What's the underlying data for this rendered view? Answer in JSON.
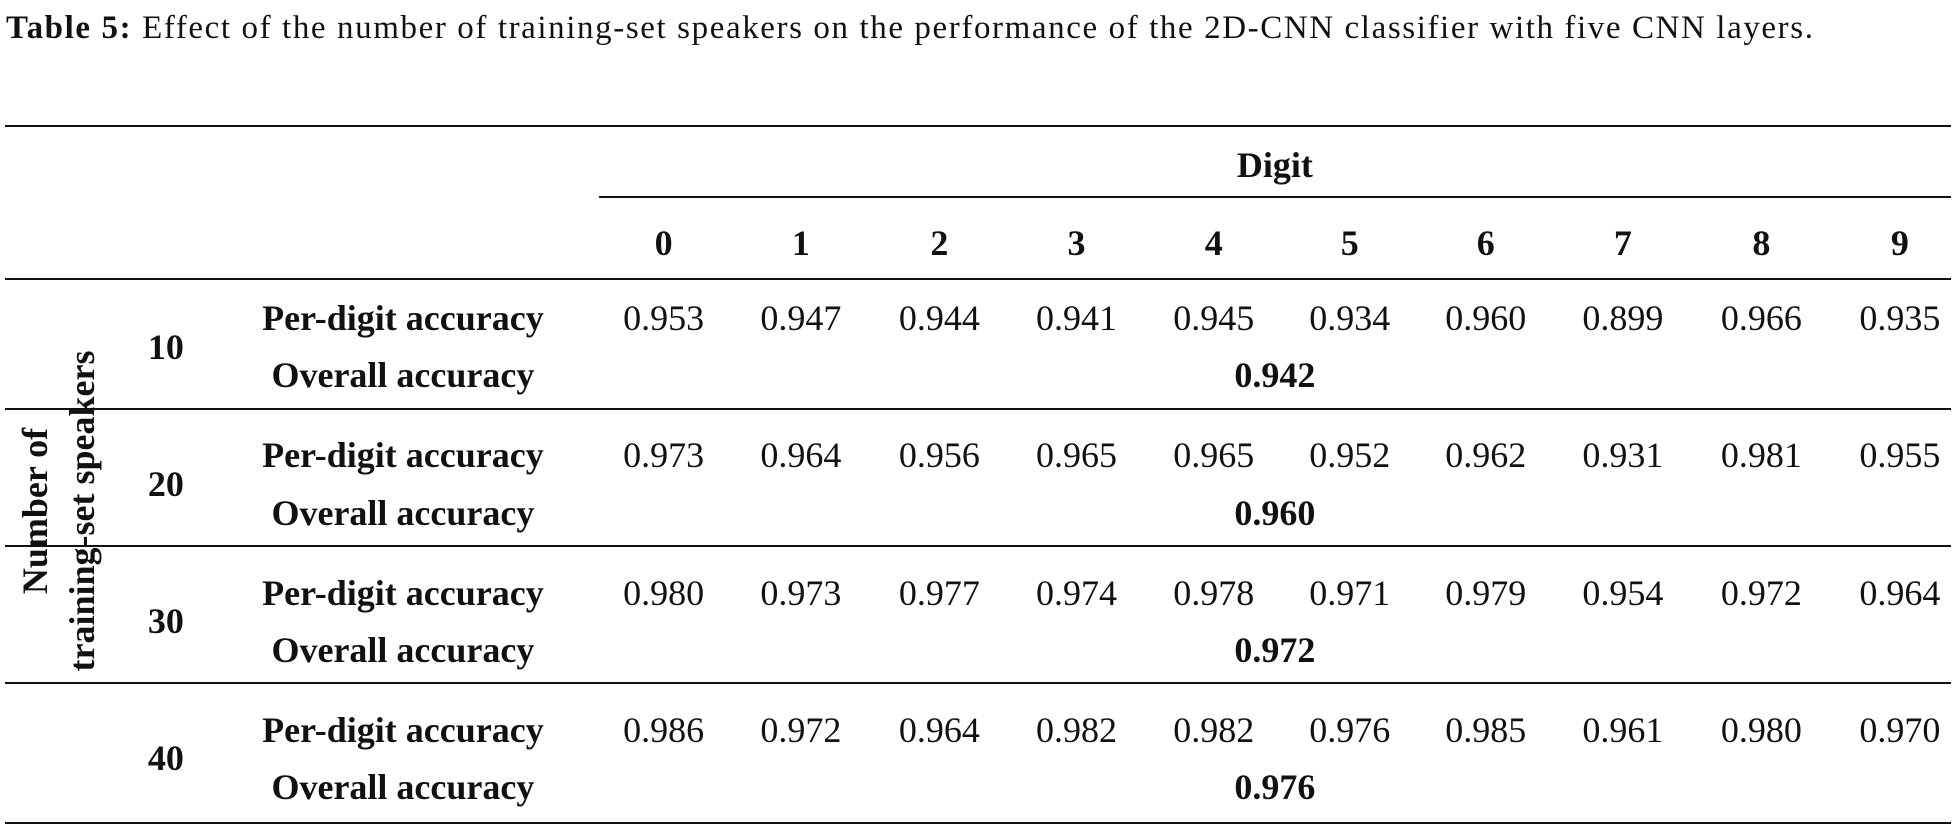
{
  "caption": {
    "label": "Table 5:",
    "text": "Effect of the number of training-set speakers on the performance of the 2D-CNN classifier with five CNN layers."
  },
  "table": {
    "column_group": "Digit",
    "columns": [
      "0",
      "1",
      "2",
      "3",
      "4",
      "5",
      "6",
      "7",
      "8",
      "9"
    ],
    "row_group": [
      "Number of",
      "training-set speakers"
    ],
    "groups": [
      {
        "speakers": "10",
        "per_digit_label": "Per-digit accuracy",
        "per_digit": [
          "0.953",
          "0.947",
          "0.944",
          "0.941",
          "0.945",
          "0.934",
          "0.960",
          "0.899",
          "0.966",
          "0.935"
        ],
        "overall_label": "Overall accuracy",
        "overall": "0.942"
      },
      {
        "speakers": "20",
        "per_digit_label": "Per-digit accuracy",
        "per_digit": [
          "0.973",
          "0.964",
          "0.956",
          "0.965",
          "0.965",
          "0.952",
          "0.962",
          "0.931",
          "0.981",
          "0.955"
        ],
        "overall_label": "Overall accuracy",
        "overall": "0.960"
      },
      {
        "speakers": "30",
        "per_digit_label": "Per-digit accuracy",
        "per_digit": [
          "0.980",
          "0.973",
          "0.977",
          "0.974",
          "0.978",
          "0.971",
          "0.979",
          "0.954",
          "0.972",
          "0.964"
        ],
        "overall_label": "Overall accuracy",
        "overall": "0.972"
      },
      {
        "speakers": "40",
        "per_digit_label": "Per-digit accuracy",
        "per_digit": [
          "0.986",
          "0.972",
          "0.964",
          "0.982",
          "0.982",
          "0.976",
          "0.985",
          "0.961",
          "0.980",
          "0.970"
        ],
        "overall_label": "Overall accuracy",
        "overall": "0.976"
      }
    ]
  }
}
